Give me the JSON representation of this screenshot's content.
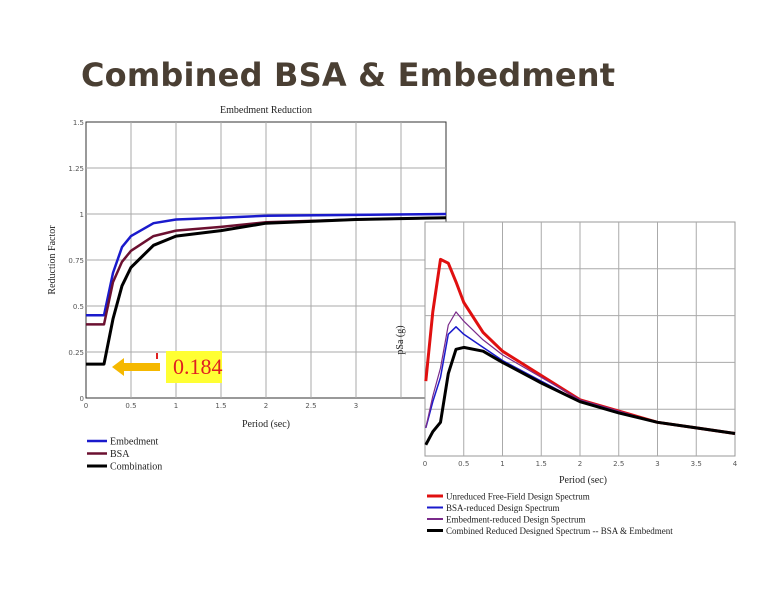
{
  "slide": {
    "title": "Combined BSA & Embedment"
  },
  "annotation": {
    "value_label": "0.184",
    "arrow_color": "#f5b800",
    "box_color": "#ffff33",
    "text_color": "#e02020"
  },
  "chart_data": [
    {
      "type": "line",
      "title": "Embedment Reduction",
      "xlabel": "Period (sec)",
      "ylabel": "Reduction Factor",
      "xlim": [
        0,
        4
      ],
      "ylim": [
        0,
        1.5
      ],
      "xticks": [
        "0",
        "0.5",
        "1",
        "1.5",
        "2",
        "2.5",
        "3"
      ],
      "yticks": [
        "0",
        "0.25",
        "0.5",
        "0.75",
        "1",
        "1.25",
        "1.5"
      ],
      "grid": true,
      "legend": "bottom-left",
      "series": [
        {
          "name": "Embedment",
          "color": "#1a1acc",
          "x": [
            0,
            0.2,
            0.3,
            0.4,
            0.5,
            0.75,
            1,
            1.5,
            2,
            3,
            4
          ],
          "y": [
            0.45,
            0.45,
            0.68,
            0.82,
            0.88,
            0.95,
            0.97,
            0.98,
            0.99,
            0.995,
            1.0
          ]
        },
        {
          "name": "BSA",
          "color": "#6b1030",
          "x": [
            0,
            0.2,
            0.3,
            0.4,
            0.5,
            0.75,
            1,
            1.5,
            2,
            3,
            4
          ],
          "y": [
            0.4,
            0.4,
            0.63,
            0.74,
            0.8,
            0.88,
            0.91,
            0.93,
            0.955,
            0.97,
            0.98
          ]
        },
        {
          "name": "Combination",
          "color": "#000000",
          "x": [
            0,
            0.2,
            0.3,
            0.4,
            0.5,
            0.75,
            1,
            1.5,
            2,
            3,
            4
          ],
          "y": [
            0.184,
            0.184,
            0.43,
            0.61,
            0.71,
            0.83,
            0.88,
            0.91,
            0.95,
            0.97,
            0.98
          ]
        }
      ]
    },
    {
      "type": "line",
      "title": "",
      "xlabel": "Period (sec)",
      "ylabel": "pSa (g)",
      "xlim": [
        0,
        4
      ],
      "ylim": [
        0,
        1.25
      ],
      "xticks": [
        "0",
        "0.5",
        "1",
        "1.5",
        "2",
        "2.5",
        "3",
        "3.5",
        "4"
      ],
      "grid": true,
      "legend": "bottom",
      "series": [
        {
          "name": "Unreduced Free-Field Design Spectrum",
          "color": "#e01010",
          "x": [
            0.01,
            0.1,
            0.2,
            0.3,
            0.4,
            0.5,
            0.75,
            1,
            1.5,
            2,
            2.5,
            3,
            3.5,
            4
          ],
          "y": [
            0.4,
            0.77,
            1.05,
            1.03,
            0.93,
            0.82,
            0.66,
            0.56,
            0.43,
            0.3,
            0.24,
            0.18,
            0.15,
            0.12
          ]
        },
        {
          "name": "BSA-reduced Design Spectrum",
          "color": "#1a1acc",
          "x": [
            0.01,
            0.1,
            0.2,
            0.3,
            0.4,
            0.5,
            0.75,
            1,
            1.5,
            2,
            2.5,
            3,
            3.5,
            4
          ],
          "y": [
            0.15,
            0.29,
            0.42,
            0.65,
            0.69,
            0.65,
            0.58,
            0.51,
            0.4,
            0.29,
            0.235,
            0.18,
            0.15,
            0.12
          ]
        },
        {
          "name": "Embedment-reduced Design Spectrum",
          "color": "#7a2a8a",
          "x": [
            0.01,
            0.1,
            0.2,
            0.3,
            0.4,
            0.5,
            0.75,
            1,
            1.5,
            2,
            2.5,
            3,
            3.5,
            4
          ],
          "y": [
            0.15,
            0.32,
            0.47,
            0.7,
            0.77,
            0.72,
            0.62,
            0.54,
            0.42,
            0.3,
            0.24,
            0.18,
            0.15,
            0.12
          ]
        },
        {
          "name": "Combined Reduced Designed Spectrum -- BSA & Embedment",
          "color": "#000000",
          "x": [
            0.01,
            0.1,
            0.2,
            0.3,
            0.4,
            0.5,
            0.75,
            1,
            1.5,
            2,
            2.5,
            3,
            3.5,
            4
          ],
          "y": [
            0.06,
            0.13,
            0.18,
            0.44,
            0.57,
            0.58,
            0.56,
            0.5,
            0.39,
            0.29,
            0.23,
            0.18,
            0.15,
            0.12
          ]
        }
      ]
    }
  ]
}
